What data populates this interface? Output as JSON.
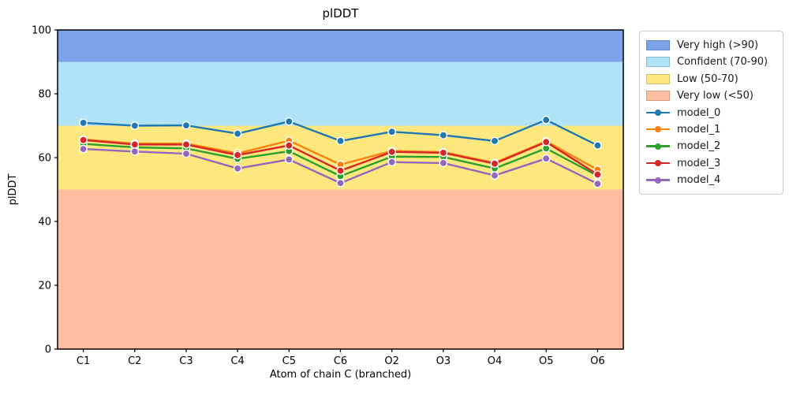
{
  "figure": {
    "title": "plDDT",
    "xlabel": "Atom of chain C (branched)",
    "ylabel": "plDDT"
  },
  "chart_data": {
    "type": "line",
    "title": "plDDT",
    "xlabel": "Atom of chain C (branched)",
    "ylabel": "plDDT",
    "ylim": [
      0,
      100
    ],
    "yticks": [
      0,
      20,
      40,
      60,
      80,
      100
    ],
    "grid": false,
    "legend_position": "outside-top-right",
    "categories": [
      "C1",
      "C2",
      "C3",
      "C4",
      "C5",
      "C6",
      "O2",
      "O3",
      "O4",
      "O5",
      "O6"
    ],
    "bands": [
      {
        "label": "Very high (>90)",
        "range": [
          90,
          100
        ],
        "color": "#7ba3e8"
      },
      {
        "label": "Confident (70-90)",
        "range": [
          70,
          90
        ],
        "color": "#b0e2f8"
      },
      {
        "label": "Low (50-70)",
        "range": [
          50,
          70
        ],
        "color": "#fde87f"
      },
      {
        "label": "Very low (<50)",
        "range": [
          0,
          50
        ],
        "color": "#ffbfa0"
      }
    ],
    "series": [
      {
        "name": "model_0",
        "color": "#1f77b4",
        "values": [
          70.9,
          70.0,
          70.1,
          67.5,
          71.3,
          65.2,
          68.1,
          67.0,
          65.2,
          71.8,
          63.8
        ]
      },
      {
        "name": "model_1",
        "color": "#ff7f0e",
        "values": [
          65.7,
          64.4,
          64.4,
          61.3,
          65.3,
          57.8,
          62.1,
          61.7,
          58.4,
          65.1,
          56.2
        ]
      },
      {
        "name": "model_2",
        "color": "#2ca02c",
        "values": [
          64.3,
          63.2,
          62.9,
          59.6,
          62.0,
          54.2,
          60.3,
          60.2,
          56.6,
          62.9,
          54.3
        ]
      },
      {
        "name": "model_3",
        "color": "#d62728",
        "values": [
          65.5,
          64.1,
          64.1,
          60.8,
          63.8,
          55.9,
          61.8,
          61.5,
          58.1,
          64.9,
          54.7
        ]
      },
      {
        "name": "model_4",
        "color": "#9467bd",
        "values": [
          62.7,
          61.9,
          61.2,
          56.6,
          59.4,
          52.0,
          58.6,
          58.3,
          54.4,
          59.7,
          51.8
        ]
      }
    ]
  }
}
